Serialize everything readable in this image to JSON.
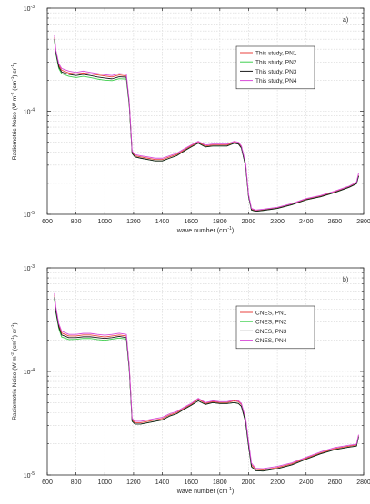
{
  "chart_data": [
    {
      "type": "line",
      "panel_label": "a)",
      "xlabel": "wave number (cm",
      "xlabel_sup": "-1",
      "xlabel_close": ")",
      "ylabel": "Radiometric Noise (W m",
      "ylabel_unit_mid1": " (cm",
      "ylabel_unit_mid2": ")",
      "ylabel_unit_end": " sr",
      "ylabel_sup": "-2",
      "ylabel_sup2": "-1",
      "ylabel_sup3": "-1",
      "y_scale": "log",
      "xlim": [
        600,
        2800
      ],
      "ylim": [
        1e-05,
        0.001
      ],
      "xticks": [
        600,
        800,
        1000,
        1200,
        1400,
        1600,
        1800,
        2000,
        2200,
        2400,
        2600,
        2800
      ],
      "xtick_labels": [
        "600",
        "800",
        "1000",
        "1200",
        "1400",
        "1600",
        "1800",
        "2000",
        "2200",
        "2400",
        "2600",
        "2800"
      ],
      "ytick_labels": [
        {
          "base": "10",
          "exp": "-3",
          "value": 0.001
        },
        {
          "base": "10",
          "exp": "-4",
          "value": 0.0001
        },
        {
          "base": "10",
          "exp": "-5",
          "value": 1e-05
        }
      ],
      "grid": true,
      "legend_position": "top-right",
      "x": [
        650,
        660,
        680,
        700,
        750,
        800,
        850,
        900,
        950,
        1000,
        1050,
        1100,
        1150,
        1170,
        1190,
        1210,
        1250,
        1300,
        1350,
        1400,
        1450,
        1500,
        1550,
        1600,
        1650,
        1700,
        1750,
        1800,
        1850,
        1900,
        1930,
        1950,
        1980,
        2000,
        2020,
        2050,
        2100,
        2200,
        2300,
        2400,
        2500,
        2600,
        2700,
        2750,
        2765
      ],
      "series": [
        {
          "name": "This study, PN1",
          "color": "#e8413c",
          "values": [
            0.00052,
            0.00038,
            0.00028,
            0.00025,
            0.000235,
            0.00023,
            0.000235,
            0.00023,
            0.000225,
            0.00022,
            0.000215,
            0.000225,
            0.00022,
            0.00012,
            4e-05,
            3.7e-05,
            3.6e-05,
            3.5e-05,
            3.4e-05,
            3.4e-05,
            3.6e-05,
            3.8e-05,
            4.2e-05,
            4.6e-05,
            5e-05,
            4.6e-05,
            4.7e-05,
            4.7e-05,
            4.7e-05,
            5e-05,
            4.9e-05,
            4.5e-05,
            3e-05,
            1.5e-05,
            1.12e-05,
            1.08e-05,
            1.1e-05,
            1.15e-05,
            1.25e-05,
            1.4e-05,
            1.5e-05,
            1.65e-05,
            1.85e-05,
            2e-05,
            2.4e-05
          ]
        },
        {
          "name": "This study, PN2",
          "color": "#3fd04e",
          "values": [
            0.00048,
            0.00036,
            0.00026,
            0.000232,
            0.000218,
            0.000212,
            0.000218,
            0.000212,
            0.000205,
            0.0002,
            0.000198,
            0.000207,
            0.000205,
            0.000115,
            3.9e-05,
            3.6e-05,
            3.5e-05,
            3.4e-05,
            3.3e-05,
            3.3e-05,
            3.5e-05,
            3.7e-05,
            4.1e-05,
            4.5e-05,
            4.9e-05,
            4.5e-05,
            4.6e-05,
            4.6e-05,
            4.6e-05,
            4.9e-05,
            4.8e-05,
            4.4e-05,
            2.9e-05,
            1.48e-05,
            1.1e-05,
            1.07e-05,
            1.09e-05,
            1.14e-05,
            1.24e-05,
            1.38e-05,
            1.48e-05,
            1.63e-05,
            1.83e-05,
            1.98e-05,
            2.35e-05
          ]
        },
        {
          "name": "This study, PN3",
          "color": "#1a1a1a",
          "values": [
            0.0005,
            0.00037,
            0.00027,
            0.00024,
            0.000228,
            0.000222,
            0.000228,
            0.000222,
            0.000215,
            0.00021,
            0.000206,
            0.000216,
            0.000214,
            0.000118,
            3.9e-05,
            3.6e-05,
            3.5e-05,
            3.4e-05,
            3.3e-05,
            3.3e-05,
            3.5e-05,
            3.7e-05,
            4.1e-05,
            4.5e-05,
            4.9e-05,
            4.5e-05,
            4.6e-05,
            4.6e-05,
            4.6e-05,
            4.9e-05,
            4.8e-05,
            4.4e-05,
            2.9e-05,
            1.48e-05,
            1.1e-05,
            1.07e-05,
            1.09e-05,
            1.14e-05,
            1.24e-05,
            1.38e-05,
            1.48e-05,
            1.63e-05,
            1.83e-05,
            1.98e-05,
            2.35e-05
          ]
        },
        {
          "name": "This study, PN4",
          "color": "#d84ad8",
          "values": [
            0.00055,
            0.00039,
            0.00029,
            0.00026,
            0.000245,
            0.000238,
            0.000245,
            0.000238,
            0.000232,
            0.000226,
            0.000222,
            0.000232,
            0.000228,
            0.000125,
            4.1e-05,
            3.8e-05,
            3.7e-05,
            3.6e-05,
            3.5e-05,
            3.5e-05,
            3.7e-05,
            3.9e-05,
            4.3e-05,
            4.7e-05,
            5.1e-05,
            4.7e-05,
            4.8e-05,
            4.8e-05,
            4.8e-05,
            5.1e-05,
            5e-05,
            4.6e-05,
            3.1e-05,
            1.55e-05,
            1.14e-05,
            1.1e-05,
            1.12e-05,
            1.17e-05,
            1.27e-05,
            1.42e-05,
            1.52e-05,
            1.68e-05,
            1.88e-05,
            2.05e-05,
            2.5e-05
          ]
        }
      ]
    },
    {
      "type": "line",
      "panel_label": "b)",
      "xlabel": "wave number (cm",
      "xlabel_sup": "-1",
      "xlabel_close": ")",
      "ylabel": "Radiometric Noise (W m",
      "ylabel_unit_mid1": " (cm",
      "ylabel_unit_mid2": ")",
      "ylabel_unit_end": " sr",
      "ylabel_sup": "-2",
      "ylabel_sup2": "-1",
      "ylabel_sup3": "-1",
      "y_scale": "log",
      "xlim": [
        600,
        2800
      ],
      "ylim": [
        1e-05,
        0.001
      ],
      "xticks": [
        600,
        800,
        1000,
        1200,
        1400,
        1600,
        1800,
        2000,
        2200,
        2400,
        2600,
        2800
      ],
      "xtick_labels": [
        "600",
        "800",
        "1000",
        "1200",
        "1400",
        "1600",
        "1800",
        "2000",
        "2200",
        "2400",
        "2600",
        "2800"
      ],
      "ytick_labels": [
        {
          "base": "10",
          "exp": "-3",
          "value": 0.001
        },
        {
          "base": "10",
          "exp": "-4",
          "value": 0.0001
        },
        {
          "base": "10",
          "exp": "-5",
          "value": 1e-05
        }
      ],
      "grid": true,
      "legend_position": "top-right",
      "x": [
        650,
        660,
        680,
        700,
        750,
        800,
        850,
        900,
        950,
        1000,
        1050,
        1100,
        1150,
        1170,
        1190,
        1210,
        1250,
        1300,
        1350,
        1400,
        1450,
        1500,
        1550,
        1600,
        1650,
        1700,
        1750,
        1800,
        1850,
        1900,
        1930,
        1950,
        1980,
        2000,
        2020,
        2050,
        2100,
        2200,
        2300,
        2400,
        2500,
        2600,
        2700,
        2750,
        2765
      ],
      "series": [
        {
          "name": "CNES, PN1",
          "color": "#e8413c",
          "values": [
            0.00055,
            0.0004,
            0.00028,
            0.000235,
            0.00022,
            0.00022,
            0.000225,
            0.000225,
            0.00022,
            0.000215,
            0.00022,
            0.000225,
            0.00022,
            0.00011,
            3.4e-05,
            3.2e-05,
            3.2e-05,
            3.3e-05,
            3.4e-05,
            3.5e-05,
            3.8e-05,
            4e-05,
            4.4e-05,
            4.8e-05,
            5.4e-05,
            4.9e-05,
            5.1e-05,
            5e-05,
            5e-05,
            5.2e-05,
            5.1e-05,
            4.8e-05,
            3.4e-05,
            2e-05,
            1.25e-05,
            1.13e-05,
            1.12e-05,
            1.18e-05,
            1.28e-05,
            1.45e-05,
            1.63e-05,
            1.8e-05,
            1.9e-05,
            1.95e-05,
            2.4e-05
          ]
        },
        {
          "name": "CNES, PN2",
          "color": "#3fd04e",
          "values": [
            0.0005,
            0.00037,
            0.00026,
            0.000215,
            0.000203,
            0.000204,
            0.000208,
            0.000208,
            0.000203,
            0.0002,
            0.000205,
            0.00021,
            0.000205,
            0.000104,
            3.3e-05,
            3.1e-05,
            3.1e-05,
            3.2e-05,
            3.3e-05,
            3.4e-05,
            3.7e-05,
            3.9e-05,
            4.3e-05,
            4.7e-05,
            5.2e-05,
            4.8e-05,
            5e-05,
            4.9e-05,
            4.9e-05,
            5e-05,
            4.9e-05,
            4.6e-05,
            3.2e-05,
            1.9e-05,
            1.2e-05,
            1.1e-05,
            1.09e-05,
            1.15e-05,
            1.25e-05,
            1.42e-05,
            1.6e-05,
            1.76e-05,
            1.86e-05,
            1.9e-05,
            2.35e-05
          ]
        },
        {
          "name": "CNES, PN3",
          "color": "#1a1a1a",
          "values": [
            0.00052,
            0.00038,
            0.00027,
            0.000225,
            0.000212,
            0.000212,
            0.000216,
            0.000216,
            0.000212,
            0.000208,
            0.000212,
            0.000218,
            0.000212,
            0.000107,
            3.3e-05,
            3.1e-05,
            3.1e-05,
            3.2e-05,
            3.3e-05,
            3.4e-05,
            3.7e-05,
            3.9e-05,
            4.3e-05,
            4.7e-05,
            5.2e-05,
            4.8e-05,
            5e-05,
            4.9e-05,
            4.9e-05,
            5e-05,
            4.9e-05,
            4.6e-05,
            3.2e-05,
            1.9e-05,
            1.2e-05,
            1.1e-05,
            1.09e-05,
            1.15e-05,
            1.25e-05,
            1.42e-05,
            1.6e-05,
            1.76e-05,
            1.86e-05,
            1.9e-05,
            2.35e-05
          ]
        },
        {
          "name": "CNES, PN4",
          "color": "#d84ad8",
          "values": [
            0.00057,
            0.00042,
            0.00029,
            0.000245,
            0.000228,
            0.000228,
            0.000233,
            0.000233,
            0.000228,
            0.000224,
            0.000228,
            0.000234,
            0.000228,
            0.000114,
            3.5e-05,
            3.3e-05,
            3.3e-05,
            3.4e-05,
            3.5e-05,
            3.6e-05,
            3.9e-05,
            4.1e-05,
            4.5e-05,
            4.9e-05,
            5.5e-05,
            5e-05,
            5.2e-05,
            5.1e-05,
            5.1e-05,
            5.3e-05,
            5.2e-05,
            4.9e-05,
            3.5e-05,
            2.1e-05,
            1.3e-05,
            1.16e-05,
            1.15e-05,
            1.21e-05,
            1.31e-05,
            1.48e-05,
            1.67e-05,
            1.84e-05,
            1.94e-05,
            1.98e-05,
            2.45e-05
          ]
        }
      ]
    }
  ]
}
